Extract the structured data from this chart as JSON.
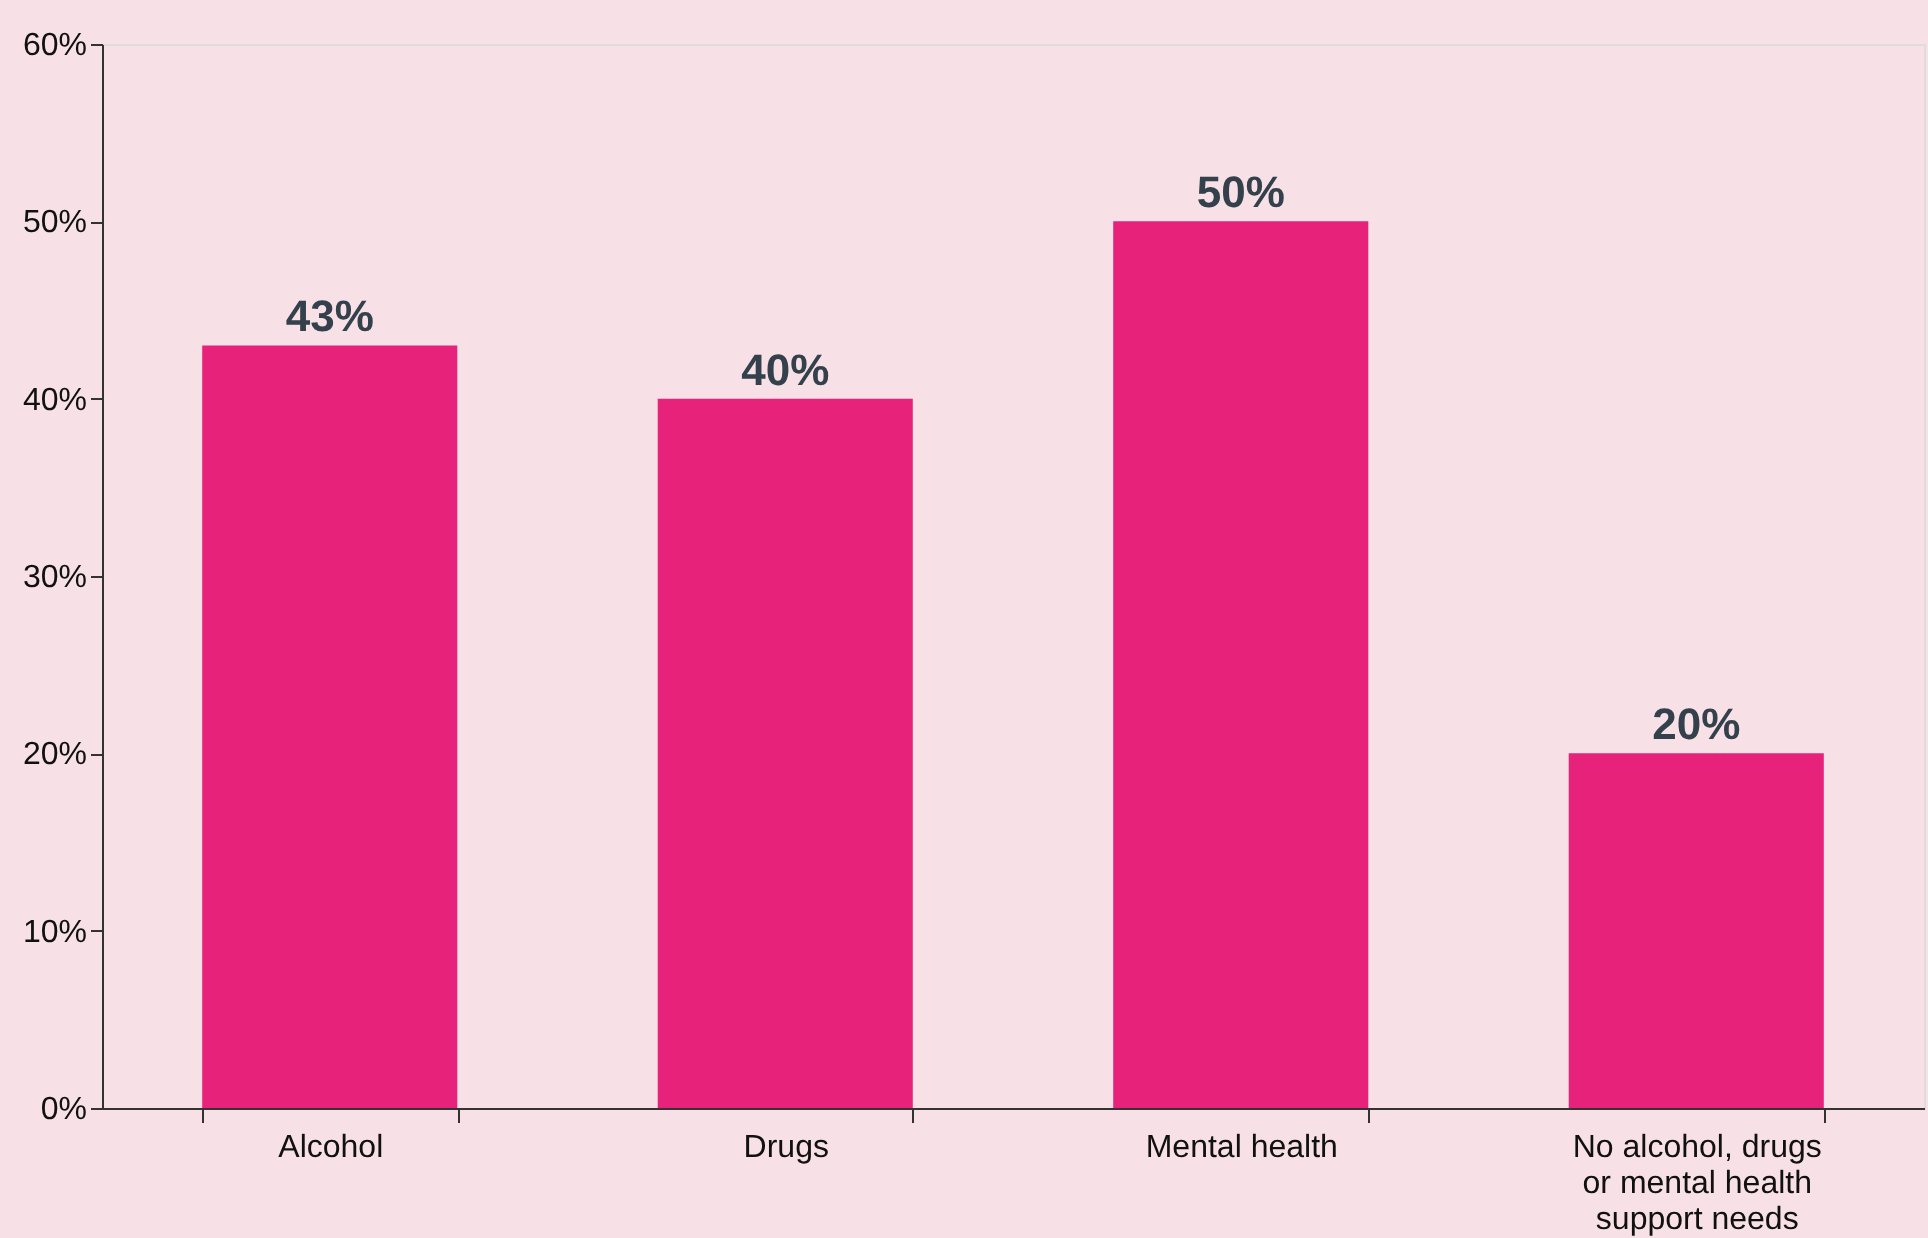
{
  "chart_data": {
    "type": "bar",
    "categories": [
      "Alcohol",
      "Drugs",
      "Mental health",
      "No alcohol, drugs or mental health support needs"
    ],
    "values": [
      43,
      40,
      50,
      20
    ],
    "color": "#e6227a",
    "value_labels": [
      "43%",
      "40%",
      "50%",
      "20%"
    ],
    "ylim": [
      0,
      60
    ],
    "yticks": [
      {
        "value": 0,
        "label": "0%"
      },
      {
        "value": 10,
        "label": "10%"
      },
      {
        "value": 20,
        "label": "20%"
      },
      {
        "value": 30,
        "label": "30%"
      },
      {
        "value": 40,
        "label": "40%"
      },
      {
        "value": 50,
        "label": "50%"
      },
      {
        "value": 60,
        "label": "60%"
      }
    ],
    "grid": false
  }
}
